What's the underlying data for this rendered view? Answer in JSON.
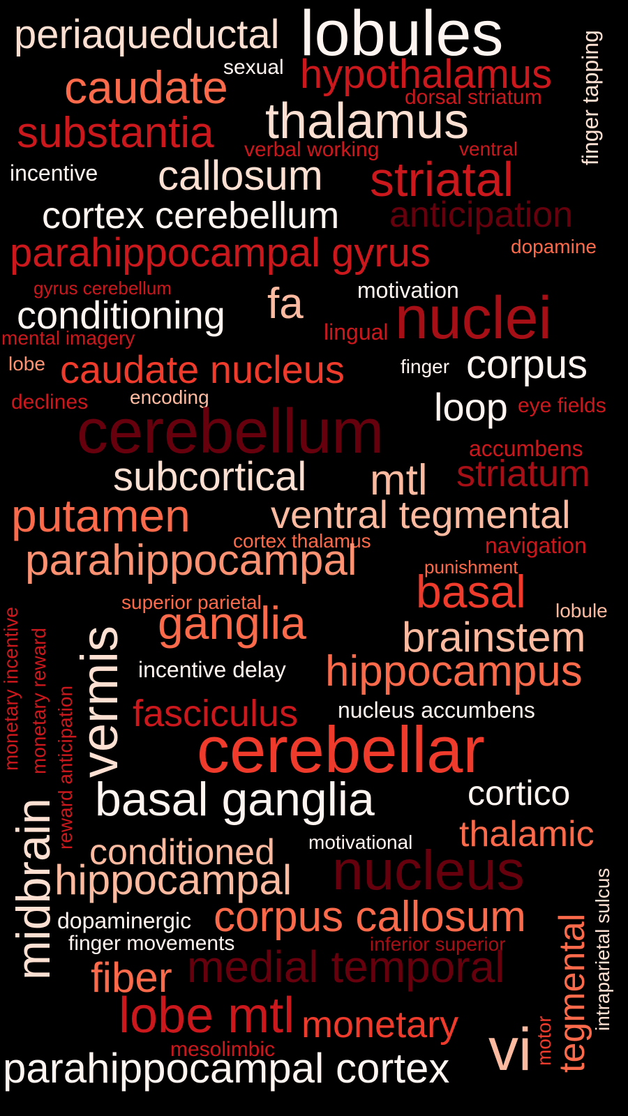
{
  "colors": {
    "background": "#000000",
    "lightest": "#fff5f0",
    "light": "#fee0d2",
    "pale": "#fcbba1",
    "salmon": "#fc9272",
    "coral": "#fb6a4a",
    "red": "#ef3b2c",
    "crimson": "#cb181d",
    "dark_red": "#a50f15",
    "darkest_red": "#67000d"
  },
  "words": [
    "periaqueductal",
    "lobules",
    "finger tapping",
    "sexual",
    "hypothalamus",
    "caudate",
    "dorsal striatum",
    "thalamus",
    "substantia",
    "verbal working",
    "ventral",
    "incentive",
    "callosum",
    "striatal",
    "cortex cerebellum",
    "anticipation",
    "parahippocampal gyrus",
    "dopamine",
    "gyrus cerebellum",
    "motivation",
    "fa",
    "conditioning",
    "nuclei",
    "lingual",
    "mental imagery",
    "lobe",
    "caudate nucleus",
    "finger",
    "corpus",
    "declines",
    "encoding",
    "loop",
    "eye fields",
    "cerebellum",
    "accumbens",
    "subcortical",
    "mtl",
    "striatum",
    "putamen",
    "ventral tegmental",
    "cortex thalamus",
    "navigation",
    "parahippocampal",
    "punishment",
    "monetary incentive",
    "vermis",
    "superior parietal",
    "basal",
    "monetary reward",
    "lobule",
    "ganglia",
    "brainstem",
    "reward anticipation",
    "incentive delay",
    "hippocampus",
    "fasciculus",
    "nucleus accumbens",
    "cerebellar",
    "midbrain",
    "basal ganglia",
    "cortico",
    "motivational",
    "thalamic",
    "conditioned",
    "intraparietal sulcus",
    "nucleus",
    "hippocampal",
    "tegmental",
    "dopaminergic",
    "corpus callosum",
    "finger movements",
    "inferior superior",
    "fiber",
    "medial temporal",
    "lobe mtl",
    "monetary",
    "motor",
    "mesolimbic",
    "vi",
    "parahippocampal cortex"
  ]
}
